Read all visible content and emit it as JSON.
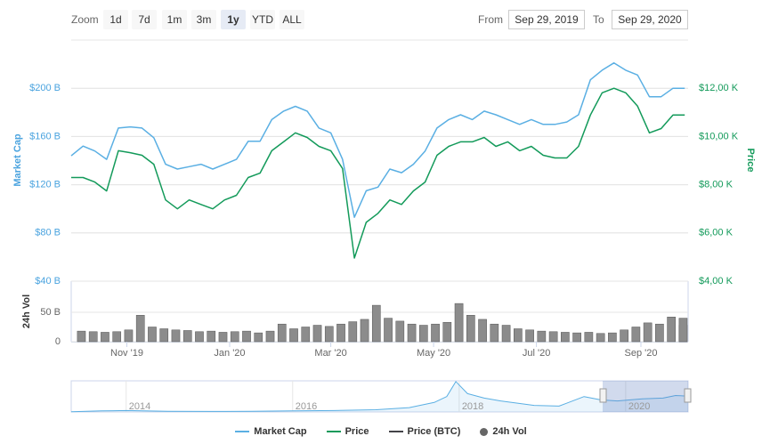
{
  "range_selector": {
    "label": "Zoom",
    "buttons": [
      "1d",
      "7d",
      "1m",
      "3m",
      "1y",
      "YTD",
      "ALL"
    ]
  },
  "date_range": {
    "from_label": "From",
    "from": "Sep 29, 2019",
    "to_label": "To",
    "to": "Sep 29, 2020"
  },
  "chart_data": [
    {
      "type": "line",
      "y_label": "Market Cap",
      "y2_label": "Price",
      "x": [
        0,
        7,
        14,
        21,
        28,
        35,
        42,
        49,
        56,
        63,
        70,
        77,
        84,
        91,
        98,
        105,
        112,
        119,
        126,
        133,
        140,
        147,
        154,
        161,
        168,
        175,
        182,
        189,
        196,
        203,
        210,
        217,
        224,
        231,
        238,
        245,
        252,
        259,
        266,
        273,
        280,
        287,
        294,
        301,
        308,
        315,
        322,
        329,
        336,
        343,
        350,
        357,
        364
      ],
      "xlim": [
        0,
        366
      ],
      "ylim": [
        40,
        240
      ],
      "yticks": [
        {
          "value": 40,
          "label": "$40 B"
        },
        {
          "value": 80,
          "label": "$80 B"
        },
        {
          "value": 120,
          "label": "$120 B"
        },
        {
          "value": 160,
          "label": "$160 B"
        },
        {
          "value": 200,
          "label": "$200 B"
        }
      ],
      "y2lim": [
        4000,
        14000
      ],
      "y2ticks": [
        {
          "value": 4000,
          "label": "$4,00 K"
        },
        {
          "value": 6000,
          "label": "$6,00 K"
        },
        {
          "value": 8000,
          "label": "$8,00 K"
        },
        {
          "value": 10000,
          "label": "$10,00 K"
        },
        {
          "value": 12000,
          "label": "$12,00 K"
        }
      ],
      "grid": true,
      "series": [
        {
          "name": "Market Cap",
          "color": "#5aafe3",
          "values": [
            144,
            152,
            148,
            141,
            167,
            168,
            167,
            159,
            137,
            133,
            135,
            137,
            133,
            137,
            141,
            156,
            156,
            174,
            181,
            185,
            181,
            167,
            163,
            141,
            93,
            115,
            118,
            133,
            130,
            137,
            148,
            167,
            174,
            178,
            174,
            181,
            178,
            174,
            170,
            174,
            170,
            170,
            172,
            178,
            207,
            215,
            221,
            215,
            211,
            193,
            193,
            200,
            200
          ]
        },
        {
          "name": "Price",
          "color": "#139a5a",
          "axis": "y2",
          "values": [
            8300,
            8300,
            8110,
            7740,
            9410,
            9330,
            9220,
            8850,
            7370,
            7000,
            7370,
            7180,
            7000,
            7370,
            7560,
            8300,
            8480,
            9410,
            9780,
            10150,
            9960,
            9590,
            9410,
            8670,
            4960,
            6440,
            6810,
            7370,
            7180,
            7740,
            8110,
            9220,
            9590,
            9780,
            9780,
            9960,
            9590,
            9780,
            9410,
            9590,
            9220,
            9110,
            9110,
            9590,
            10890,
            11810,
            12000,
            11810,
            11260,
            10150,
            10330,
            10890,
            10890
          ]
        },
        {
          "name": "Price (BTC)",
          "color": "#434348",
          "values": [
            null,
            null,
            null,
            null,
            null,
            null,
            null,
            null,
            null,
            null,
            null,
            null,
            null,
            null,
            null,
            null,
            null,
            null,
            null,
            null,
            null,
            null,
            null,
            null,
            null,
            null,
            null,
            null,
            null,
            null,
            null,
            null,
            null,
            null,
            null,
            null,
            null,
            null,
            null,
            null,
            null,
            null,
            null,
            null,
            null,
            null,
            null,
            null,
            null,
            null,
            null,
            null,
            null
          ]
        }
      ]
    },
    {
      "type": "bar",
      "y_label": "24h Vol",
      "x": [
        0,
        7,
        14,
        21,
        28,
        35,
        42,
        49,
        56,
        63,
        70,
        77,
        84,
        91,
        98,
        105,
        112,
        119,
        126,
        133,
        140,
        147,
        154,
        161,
        168,
        175,
        182,
        189,
        196,
        203,
        210,
        217,
        224,
        231,
        238,
        245,
        252,
        259,
        266,
        273,
        280,
        287,
        294,
        301,
        308,
        315,
        322,
        329,
        336,
        343,
        350,
        357,
        364
      ],
      "xlim": [
        0,
        366
      ],
      "xticks": [
        {
          "value": 33,
          "label": "Nov '19"
        },
        {
          "value": 94,
          "label": "Jan '20"
        },
        {
          "value": 154,
          "label": "Mar '20"
        },
        {
          "value": 215,
          "label": "May '20"
        },
        {
          "value": 276,
          "label": "Jul '20"
        },
        {
          "value": 338,
          "label": "Sep '20"
        }
      ],
      "ylim": [
        0,
        100
      ],
      "yticks": [
        0,
        {
          "value": 50,
          "label": "50 B"
        }
      ],
      "series": [
        {
          "name": "24h Vol",
          "color": "#8c8c8c",
          "values": [
            18,
            17,
            16,
            17,
            20,
            45,
            25,
            22,
            20,
            19,
            17,
            18,
            16,
            17,
            18,
            15,
            18,
            30,
            22,
            25,
            28,
            26,
            30,
            34,
            38,
            62,
            40,
            35,
            30,
            28,
            30,
            33,
            65,
            45,
            38,
            30,
            28,
            22,
            20,
            18,
            17,
            16,
            15,
            16,
            14,
            15,
            20,
            25,
            32,
            30,
            42,
            28,
            40
          ]
        }
      ]
    },
    {
      "type": "line",
      "x": [
        2013.34,
        2013.7,
        2014.0,
        2014.5,
        2015.0,
        2015.5,
        2016.0,
        2016.5,
        2017.0,
        2017.4,
        2017.7,
        2017.85,
        2017.96,
        2018.1,
        2018.3,
        2018.5,
        2018.9,
        2019.2,
        2019.5,
        2019.7,
        2019.9,
        2020.2,
        2020.45,
        2020.6,
        2020.75
      ],
      "xlim": [
        2013.34,
        2020.75
      ],
      "xticks": [
        2014,
        2016,
        2018,
        2020
      ],
      "ylim": [
        0,
        850
      ],
      "color": "#5aafe3",
      "values": [
        5,
        30,
        40,
        20,
        15,
        20,
        30,
        40,
        60,
        120,
        260,
        420,
        830,
        500,
        380,
        300,
        180,
        160,
        420,
        330,
        300,
        360,
        380,
        450,
        430
      ]
    }
  ]
}
